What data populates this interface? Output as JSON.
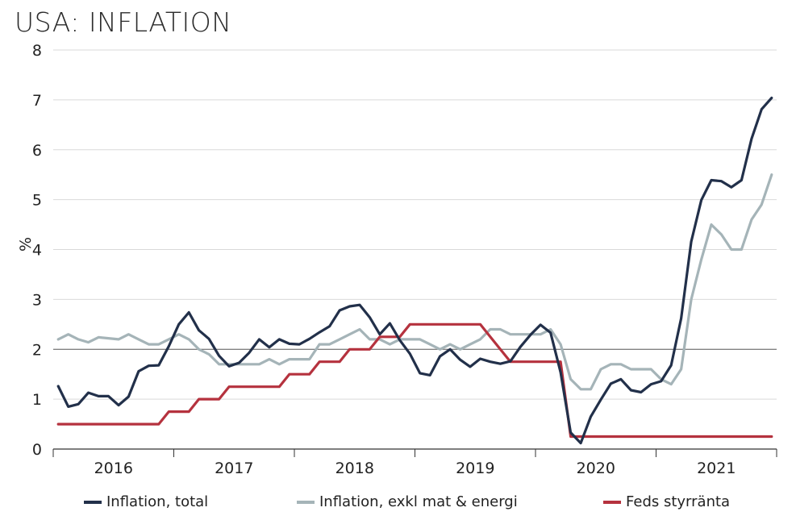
{
  "title": "USA: INFLATION",
  "colors": {
    "total": "#22304a",
    "core": "#a5b4b8",
    "fed": "#b5323e",
    "grid": "#d9d9d9",
    "baseline": "#555555"
  },
  "chart_data": {
    "type": "line",
    "ylabel": "%",
    "ylim": [
      0,
      8
    ],
    "yticks": [
      "0",
      "1",
      "2",
      "3",
      "4",
      "5",
      "6",
      "7",
      "8"
    ],
    "years": [
      "2016",
      "2017",
      "2018",
      "2019",
      "2020",
      "2021"
    ],
    "x_start": "2016-01",
    "legend_position": "bottom",
    "grid": true,
    "reference_line": 2,
    "series": [
      {
        "key": "total",
        "name": "Inflation, total",
        "values": [
          1.26,
          0.85,
          0.9,
          1.13,
          1.06,
          1.06,
          0.88,
          1.05,
          1.56,
          1.67,
          1.68,
          2.06,
          2.5,
          2.74,
          2.38,
          2.21,
          1.87,
          1.66,
          1.73,
          1.93,
          2.2,
          2.04,
          2.2,
          2.11,
          2.1,
          2.21,
          2.34,
          2.46,
          2.78,
          2.86,
          2.89,
          2.64,
          2.3,
          2.52,
          2.18,
          1.91,
          1.52,
          1.48,
          1.86,
          2.0,
          1.79,
          1.65,
          1.81,
          1.75,
          1.71,
          1.76,
          2.05,
          2.29,
          2.49,
          2.33,
          1.54,
          0.33,
          0.12,
          0.65,
          0.99,
          1.31,
          1.4,
          1.18,
          1.14,
          1.3,
          1.36,
          1.68,
          2.62,
          4.16,
          4.99,
          5.39,
          5.37,
          5.25,
          5.39,
          6.22,
          6.81,
          7.04
        ]
      },
      {
        "key": "core",
        "name": "Inflation, exkl mat & energi",
        "values": [
          2.2,
          2.3,
          2.2,
          2.14,
          2.24,
          2.22,
          2.2,
          2.3,
          2.2,
          2.1,
          2.1,
          2.2,
          2.3,
          2.2,
          2.0,
          1.9,
          1.7,
          1.7,
          1.7,
          1.7,
          1.7,
          1.8,
          1.7,
          1.8,
          1.8,
          1.8,
          2.1,
          2.1,
          2.2,
          2.3,
          2.4,
          2.2,
          2.2,
          2.1,
          2.2,
          2.2,
          2.2,
          2.1,
          2.0,
          2.1,
          2.0,
          2.1,
          2.2,
          2.4,
          2.4,
          2.3,
          2.3,
          2.3,
          2.3,
          2.4,
          2.1,
          1.4,
          1.2,
          1.2,
          1.6,
          1.7,
          1.7,
          1.6,
          1.6,
          1.6,
          1.4,
          1.3,
          1.6,
          3.0,
          3.8,
          4.5,
          4.3,
          4.0,
          4.0,
          4.6,
          4.9,
          5.5
        ]
      },
      {
        "key": "fed",
        "name": "Feds styrränta",
        "values": [
          0.5,
          0.5,
          0.5,
          0.5,
          0.5,
          0.5,
          0.5,
          0.5,
          0.5,
          0.5,
          0.5,
          0.75,
          0.75,
          0.75,
          1.0,
          1.0,
          1.0,
          1.25,
          1.25,
          1.25,
          1.25,
          1.25,
          1.25,
          1.5,
          1.5,
          1.5,
          1.75,
          1.75,
          1.75,
          2.0,
          2.0,
          2.0,
          2.25,
          2.25,
          2.25,
          2.5,
          2.5,
          2.5,
          2.5,
          2.5,
          2.5,
          2.5,
          2.5,
          2.25,
          2.0,
          1.75,
          1.75,
          1.75,
          1.75,
          1.75,
          1.75,
          0.25,
          0.25,
          0.25,
          0.25,
          0.25,
          0.25,
          0.25,
          0.25,
          0.25,
          0.25,
          0.25,
          0.25,
          0.25,
          0.25,
          0.25,
          0.25,
          0.25,
          0.25,
          0.25,
          0.25,
          0.25
        ]
      }
    ]
  }
}
